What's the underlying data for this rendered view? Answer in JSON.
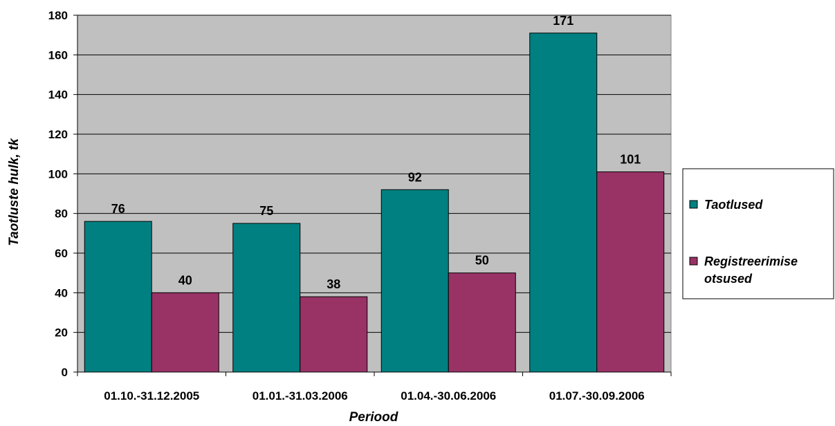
{
  "chart_data": {
    "type": "bar",
    "categories": [
      "01.10.-31.12.2005",
      "01.01.-31.03.2006",
      "01.04.-30.06.2006",
      "01.07.-30.09.2006"
    ],
    "series": [
      {
        "name": "Taotlused",
        "values": [
          76,
          75,
          92,
          171
        ],
        "color": "#008080"
      },
      {
        "name": "Registreerimise otsused",
        "values": [
          40,
          38,
          50,
          101
        ],
        "color": "#993366"
      }
    ],
    "xlabel": "Periood",
    "ylabel": "Taotluste hulk, tk",
    "ylim": [
      0,
      180
    ],
    "yticks": [
      0,
      20,
      40,
      60,
      80,
      100,
      120,
      140,
      160,
      180
    ],
    "grid": true,
    "plot_background": "#c0c0c0",
    "legend_position": "right",
    "legend": {
      "items": [
        {
          "line1": "Taotlused",
          "line2": ""
        },
        {
          "line1": "Registreerimise",
          "line2": "otsused"
        }
      ]
    }
  }
}
